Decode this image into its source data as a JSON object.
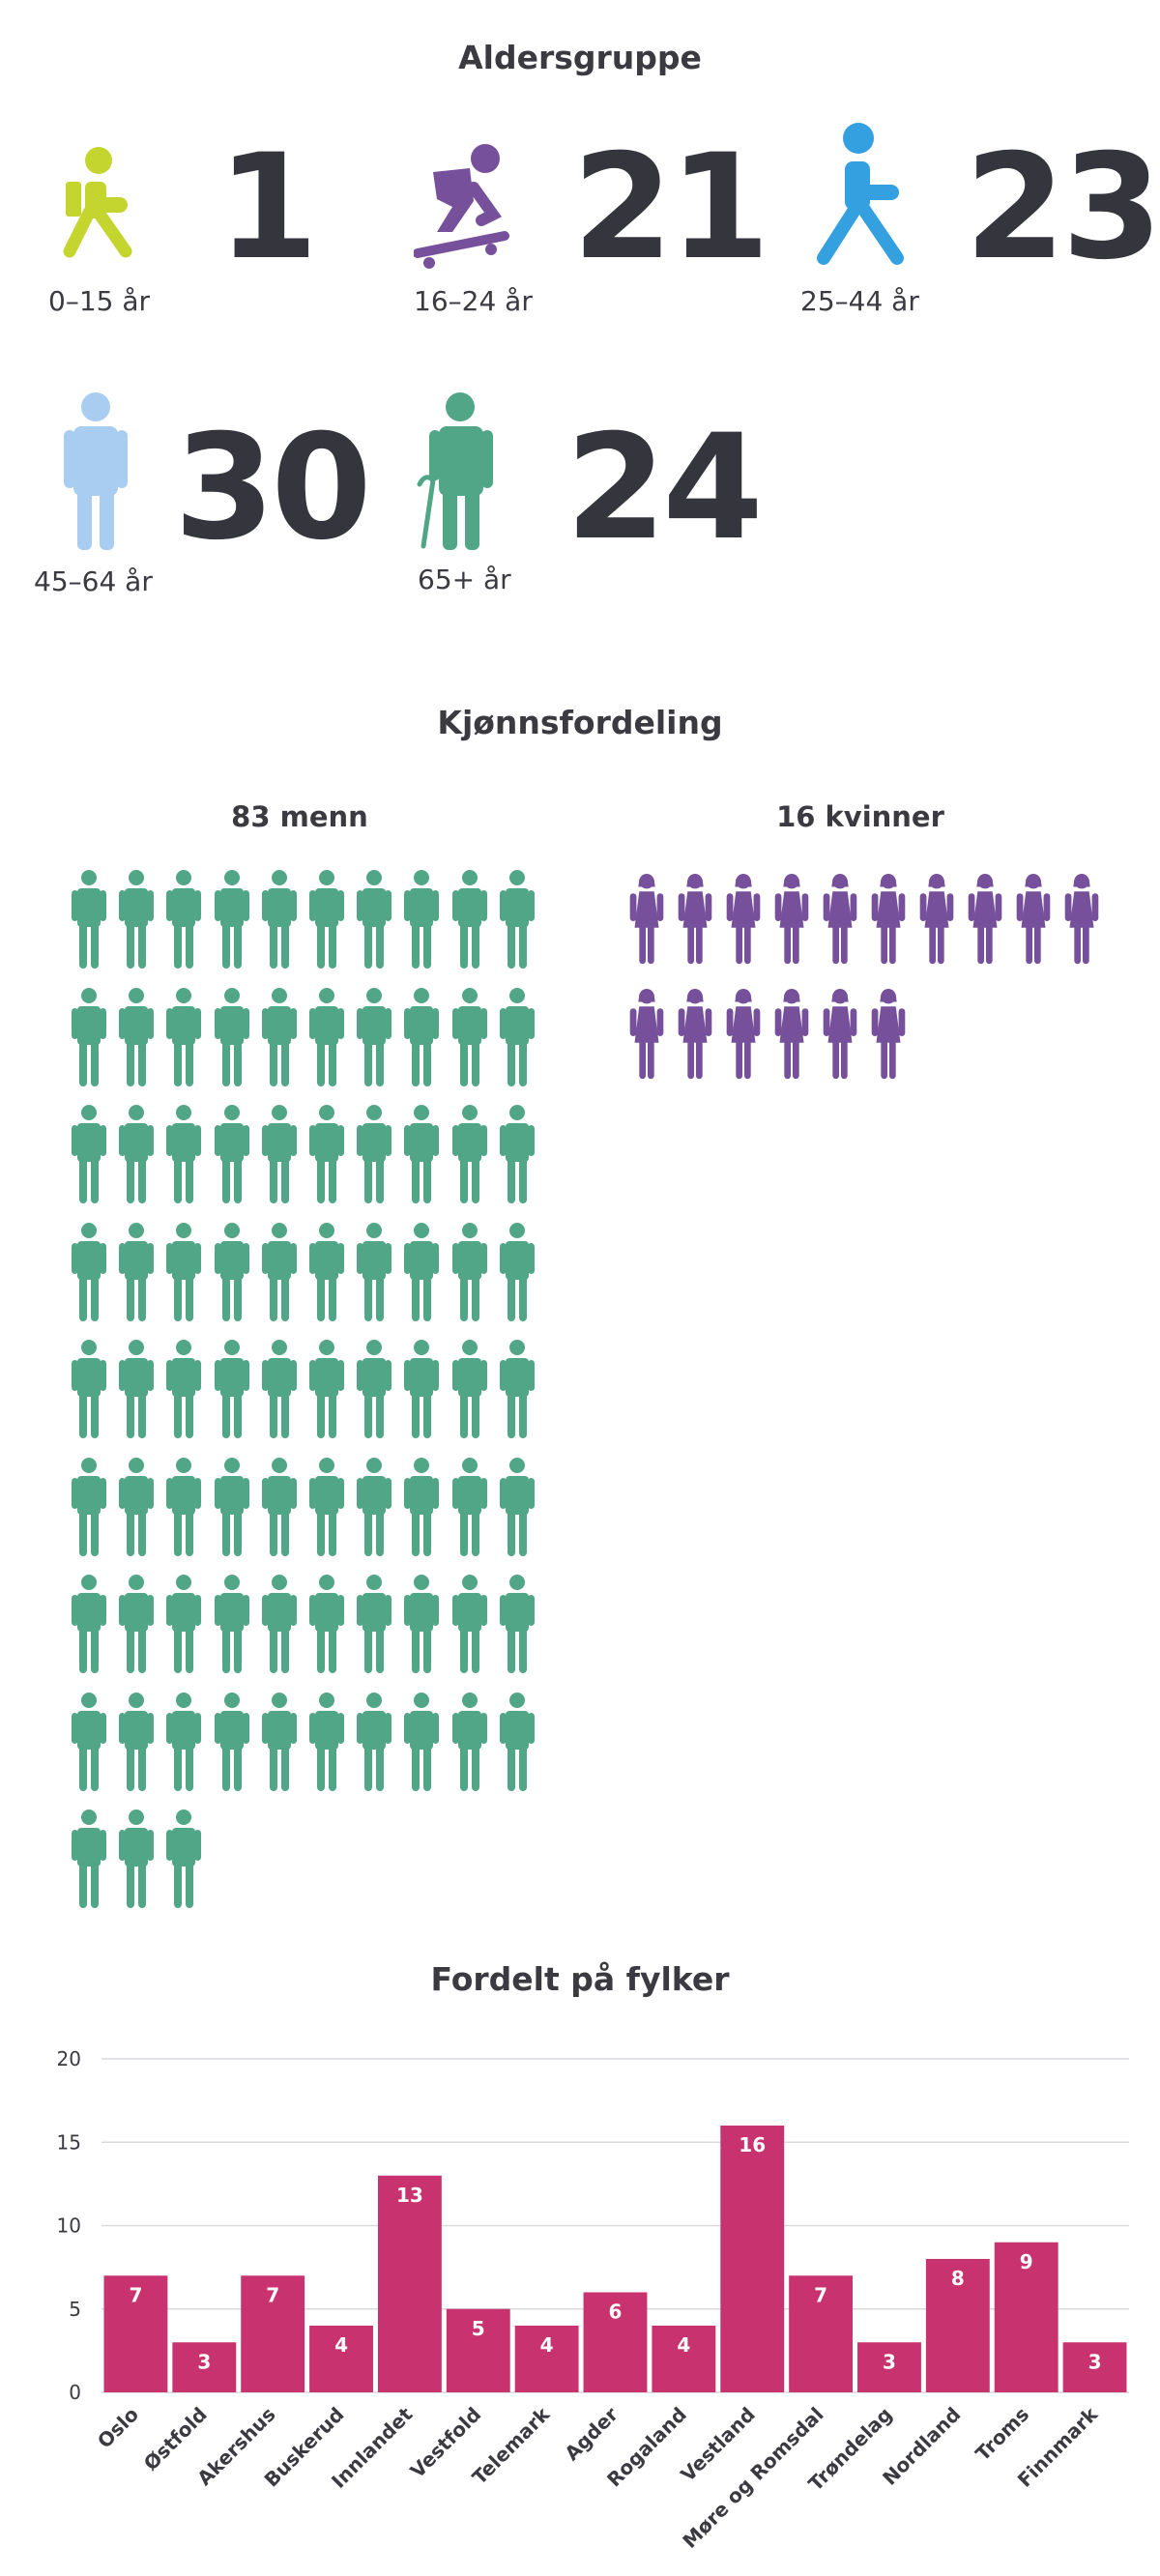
{
  "age": {
    "title": "Aldersgruppe",
    "groups": [
      {
        "label": "0–15 år",
        "count": "1",
        "icon": "child-icon",
        "color": "#c5d530"
      },
      {
        "label": "16–24 år",
        "count": "21",
        "icon": "skateboarder-icon",
        "color": "#76509a"
      },
      {
        "label": "25–44 år",
        "count": "23",
        "icon": "walking-person-icon",
        "color": "#35a0e0"
      },
      {
        "label": "45–64 år",
        "count": "30",
        "icon": "standing-person-icon",
        "color": "#a8cdf0"
      },
      {
        "label": "65+ år",
        "count": "24",
        "icon": "elderly-person-cane-icon",
        "color": "#52a688"
      }
    ]
  },
  "gender": {
    "title": "Kjønnsfordeling",
    "men": {
      "label": "83 menn",
      "count": 83,
      "color": "#52a688",
      "icon": "man-icon"
    },
    "women": {
      "label": "16 kvinner",
      "count": 16,
      "color": "#76509a",
      "icon": "woman-icon"
    }
  },
  "chart_data": {
    "type": "bar",
    "title": "Fordelt på fylker",
    "categories": [
      "Oslo",
      "Østfold",
      "Akershus",
      "Buskerud",
      "Innlandet",
      "Vestfold",
      "Telemark",
      "Agder",
      "Rogaland",
      "Vestland",
      "Møre og Romsdal",
      "Trøndelag",
      "Nordland",
      "Troms",
      "Finnmark"
    ],
    "values": [
      7,
      3,
      7,
      4,
      13,
      5,
      4,
      6,
      4,
      16,
      7,
      3,
      8,
      9,
      3
    ],
    "ylim": [
      0,
      20
    ],
    "yticks": [
      0,
      5,
      10,
      15,
      20
    ],
    "xlabel": "",
    "ylabel": "",
    "grid": true,
    "bar_color": "#c8336f"
  }
}
